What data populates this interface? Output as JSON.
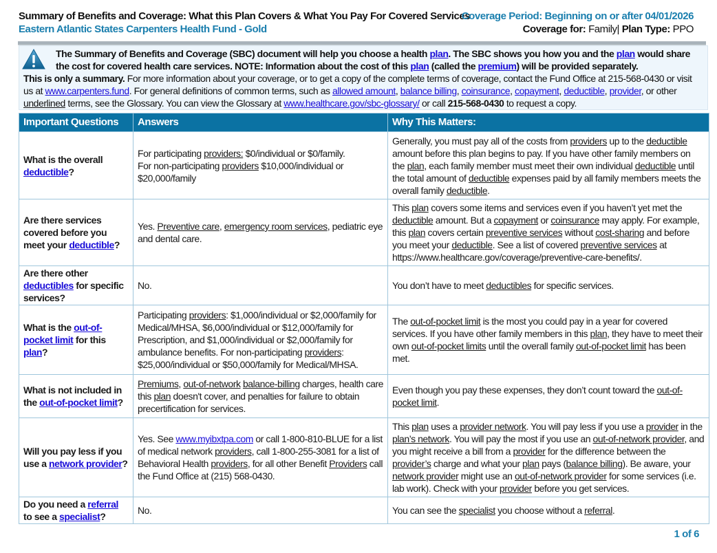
{
  "header": {
    "title": "Summary of Benefits and Coverage: What this Plan Covers & What You Pay For Covered Services",
    "plan_name": "Eastern Atlantic States Carpenters Health Fund - Gold",
    "coverage_period": "Coverage Period: Beginning on or after 04/01/2026",
    "coverage_for_label": "Coverage for:",
    "coverage_for_value": "Family|",
    "plan_type_label": "Plan Type:",
    "plan_type_value": "PPO"
  },
  "info": {
    "icon": "warning-triangle-icon",
    "lead": [
      "The Summary of Benefits and Coverage (SBC) document will help you choose a health ",
      {
        "l": "plan"
      },
      ". The SBC shows you how you and the ",
      {
        "l": "plan"
      },
      " would share the cost for covered health care services. NOTE: Information about the cost of this ",
      {
        "l": "plan"
      },
      " (called the ",
      {
        "l": "premium"
      },
      ") will be provided separately."
    ],
    "body": [
      {
        "b": "This is only a summary."
      },
      " For more information about your coverage, or to get a copy of the complete terms of coverage, contact the Fund Office at 215-568-0430 or visit us at ",
      {
        "l": "www.carpenters.fund"
      },
      ". For general definitions of common terms, such as ",
      {
        "l": "allowed amount"
      },
      ", ",
      {
        "l": "balance billing"
      },
      ", ",
      {
        "l": "coinsurance"
      },
      ", ",
      {
        "l": "copayment"
      },
      ", ",
      {
        "l": "deductible"
      },
      ", ",
      {
        "l": "provider"
      },
      ", or other ",
      {
        "u": "underlined"
      },
      " terms, see the Glossary.  You can view the Glossary at ",
      {
        "l": "www.healthcare.gov/sbc-glossary/"
      },
      " or call ",
      {
        "b": "215-568-0430"
      },
      " to request a copy."
    ]
  },
  "table": {
    "headers": [
      "Important Questions",
      "Answers",
      "Why This Matters:"
    ],
    "rows": [
      {
        "q": [
          "What is the overall ",
          {
            "l": "deductible"
          },
          "?"
        ],
        "a": [
          "For participating ",
          {
            "u": "providers:"
          },
          " $0/individual or $0/family.",
          {
            "br": 1
          },
          "For non-participating ",
          {
            "u": "providers"
          },
          " $10,000/individual or $20,000/family"
        ],
        "w": [
          "Generally, you must pay all of the costs from ",
          {
            "u": "providers"
          },
          " up to the ",
          {
            "u": "deductible"
          },
          " amount before this plan begins to pay. If you have other family members on the ",
          {
            "u": "plan"
          },
          ", each family member must meet their own individual ",
          {
            "u": "deductible"
          },
          " until the total amount of ",
          {
            "u": "deductible"
          },
          " expenses paid by all family members meets the overall family ",
          {
            "u": "deductible"
          },
          "."
        ]
      },
      {
        "q": [
          "Are there services covered before you meet your ",
          {
            "l": "deductible"
          },
          "?"
        ],
        "a": [
          "Yes.  ",
          {
            "u": "Preventive care"
          },
          ", ",
          {
            "u": "emergency room services"
          },
          ", pediatric eye and dental care."
        ],
        "w": [
          "This ",
          {
            "u": "plan"
          },
          " covers some items and services even if you haven’t yet met the ",
          {
            "u": "deductible"
          },
          " amount.  But a ",
          {
            "u": "copayment"
          },
          " or ",
          {
            "u": "coinsurance"
          },
          " may apply.  For example, this ",
          {
            "u": "plan"
          },
          " covers certain ",
          {
            "u": "preventive services"
          },
          " without ",
          {
            "u": "cost-sharing"
          },
          " and before you meet your ",
          {
            "u": "deductible"
          },
          ".  See a list of covered ",
          {
            "u": "preventive services"
          },
          " at https://www.healthcare.gov/coverage/preventive-care-benefits/."
        ]
      },
      {
        "q": [
          "Are there other ",
          {
            "l": "deductibles"
          },
          " for specific services?"
        ],
        "a": [
          "No."
        ],
        "w": [
          "You don’t have to meet ",
          {
            "u": "deductibles"
          },
          " for specific services."
        ]
      },
      {
        "q": [
          "What is the ",
          {
            "l": "out-of-pocket limit"
          },
          " for this ",
          {
            "l": "plan"
          },
          "?"
        ],
        "a": [
          "Participating ",
          {
            "u": "providers"
          },
          ": $1,000/individual or $2,000/family for Medical/MHSA, $6,000/individual or $12,000/family for Prescription, and $1,000/individual or $2,000/family for ambulance benefits.  For non-participating ",
          {
            "u": "providers"
          },
          ": $25,000/individual or $50,000/family for Medical/MHSA."
        ],
        "w": [
          "The ",
          {
            "u": "out-of-pocket limit"
          },
          " is the most you could pay in a year for covered services.  If you have other family members in this ",
          {
            "u": "plan"
          },
          ", they have to meet their own ",
          {
            "u": "out-of-pocket limits"
          },
          " until the overall family ",
          {
            "u": "out-of-pocket limit"
          },
          " has been met."
        ]
      },
      {
        "q": [
          "What is not included in the ",
          {
            "l": "out-of-pocket limit"
          },
          "?"
        ],
        "a": [
          {
            "u": "Premiums"
          },
          ", ",
          {
            "u": "out-of-network"
          },
          " ",
          {
            "u": "balance-billing"
          },
          " charges, health care this ",
          {
            "u": "plan"
          },
          " doesn't cover, and penalties for failure to obtain precertification for services."
        ],
        "w": [
          "Even though you pay these expenses, they don’t count toward the ",
          {
            "u": "out-of-pocket limit"
          },
          "."
        ]
      },
      {
        "q": [
          "Will you pay less if you use a ",
          {
            "l": "network provider"
          },
          "?"
        ],
        "a": [
          "Yes.  See ",
          {
            "l": "www.myibxtpa.com"
          },
          " or call 1-800-810-BLUE for a list of medical network ",
          {
            "u": "providers"
          },
          ", call 1-800-255-3081 for a list of Behavioral Health ",
          {
            "u": "providers"
          },
          ", for all other Benefit ",
          {
            "u": "Providers"
          },
          " call the Fund Office at (215) 568-0430."
        ],
        "w": [
          "This ",
          {
            "u": "plan"
          },
          " uses a ",
          {
            "u": "provider network"
          },
          ".  You will pay less if you use a ",
          {
            "u": "provider"
          },
          " in the ",
          {
            "u": "plan’s network"
          },
          ".  You will pay the most if you use an ",
          {
            "u": "out-of-network provider"
          },
          ", and you might receive a bill from a ",
          {
            "u": "provider"
          },
          " for the difference between the ",
          {
            "u": "provider’s"
          },
          " charge and what your ",
          {
            "u": "plan"
          },
          " pays (",
          {
            "u": "balance billing"
          },
          ").  Be aware, your ",
          {
            "u": "network provider"
          },
          " might use an ",
          {
            "u": "out-of-network provider"
          },
          " for some services (i.e. lab work).  Check with your ",
          {
            "u": "provider"
          },
          " before you get services."
        ]
      },
      {
        "q": [
          "Do you need a ",
          {
            "l": "referral"
          },
          " to see a ",
          {
            "l": "specialist"
          },
          "?"
        ],
        "a": [
          "No."
        ],
        "w": [
          "You can see the ",
          {
            "u": "specialist"
          },
          " you choose without a ",
          {
            "u": "referral"
          },
          "."
        ]
      }
    ]
  },
  "footer": {
    "page": "1 of 6"
  },
  "colors": {
    "accent": "#1b7fae",
    "header_bg": "#0b72a3",
    "info_bg": "#eef6fc",
    "link": "#1a0dd8"
  }
}
